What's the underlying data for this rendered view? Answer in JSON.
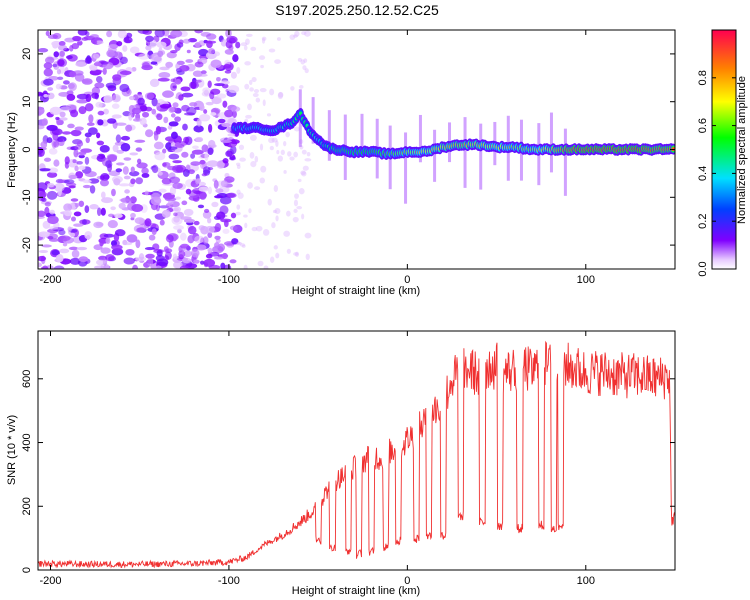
{
  "title": "S197.2025.250.12.52.C25",
  "chart_data": [
    {
      "type": "heatmap",
      "name": "spectrogram",
      "xlabel": "Height of straight line (km)",
      "ylabel": "Frequency (Hz)",
      "xlim": [
        -207,
        150
      ],
      "ylim": [
        -25,
        25
      ],
      "xticks": [
        -200,
        -100,
        0,
        100
      ],
      "yticks": [
        -20,
        -10,
        0,
        10,
        20
      ],
      "colorbar": {
        "label": "Normalized spectral amplitude",
        "range": [
          0,
          1
        ],
        "ticks": [
          0.0,
          0.2,
          0.4,
          0.6,
          0.8
        ]
      },
      "signal_track": {
        "heights_km": [
          -97,
          -85,
          -75,
          -65,
          -60,
          -55,
          -50,
          -45,
          -40,
          -30,
          -20,
          -10,
          0,
          10,
          20,
          30,
          40,
          50,
          60,
          70,
          80,
          90,
          100,
          110,
          120,
          130,
          140,
          150
        ],
        "freq_hz": [
          4.5,
          4.5,
          4.0,
          5.5,
          7.5,
          4.0,
          2.0,
          0.5,
          0,
          -0.5,
          -0.5,
          -1,
          -0.5,
          -0.5,
          0.5,
          1,
          1,
          0.5,
          0.5,
          0,
          0,
          0,
          0,
          0,
          0,
          0,
          0,
          0
        ],
        "amplitude": [
          0.35,
          0.4,
          0.4,
          0.45,
          0.5,
          0.45,
          0.4,
          0.45,
          0.5,
          0.55,
          0.55,
          0.6,
          0.65,
          0.7,
          0.75,
          0.8,
          0.75,
          0.7,
          0.65,
          0.65,
          0.75,
          0.9,
          0.95,
          0.95,
          0.95,
          0.95,
          0.9,
          0.9
        ]
      }
    },
    {
      "type": "line",
      "name": "snr",
      "xlabel": "Height of straight line (km)",
      "ylabel": "SNR (10 * v/v)",
      "xlim": [
        -207,
        150
      ],
      "ylim": [
        0,
        750
      ],
      "xticks": [
        -200,
        -100,
        0,
        100
      ],
      "yticks": [
        0,
        200,
        400,
        600
      ],
      "color": "#f03030",
      "series": [
        {
          "name": "SNR",
          "x": [
            -207,
            -180,
            -150,
            -120,
            -100,
            -90,
            -80,
            -70,
            -60,
            -50,
            -45,
            -40,
            -35,
            -30,
            -25,
            -20,
            -15,
            -10,
            -5,
            0,
            5,
            10,
            15,
            20,
            25,
            30,
            35,
            40,
            45,
            50,
            55,
            60,
            65,
            70,
            75,
            80,
            85,
            90,
            95,
            100,
            110,
            120,
            130,
            140,
            147,
            148,
            150
          ],
          "y": [
            20,
            18,
            18,
            20,
            25,
            40,
            80,
            110,
            150,
            200,
            250,
            280,
            300,
            320,
            340,
            360,
            350,
            370,
            380,
            410,
            430,
            470,
            500,
            520,
            600,
            620,
            630,
            610,
            640,
            640,
            620,
            630,
            640,
            620,
            650,
            640,
            660,
            640,
            630,
            620,
            620,
            610,
            610,
            600,
            610,
            150,
            170
          ]
        }
      ],
      "dropouts": [
        {
          "x": -50,
          "y": 95
        },
        {
          "x": -42,
          "y": 70
        },
        {
          "x": -33,
          "y": 60
        },
        {
          "x": -27,
          "y": 50
        },
        {
          "x": -20,
          "y": 60
        },
        {
          "x": -12,
          "y": 70
        },
        {
          "x": -5,
          "y": 90
        },
        {
          "x": 5,
          "y": 100
        },
        {
          "x": 12,
          "y": 110
        },
        {
          "x": 20,
          "y": 110
        },
        {
          "x": 30,
          "y": 170
        },
        {
          "x": 42,
          "y": 150
        },
        {
          "x": 52,
          "y": 140
        },
        {
          "x": 63,
          "y": 130
        },
        {
          "x": 75,
          "y": 140
        },
        {
          "x": 82,
          "y": 130
        },
        {
          "x": 86,
          "y": 140
        }
      ]
    }
  ]
}
